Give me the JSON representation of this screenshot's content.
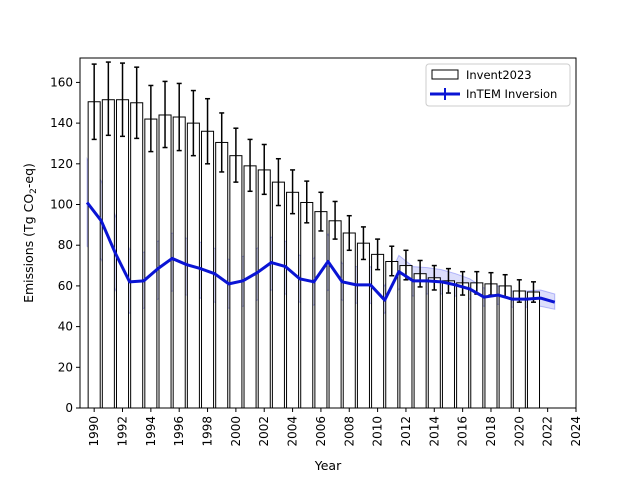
{
  "chart_data": {
    "type": "bar",
    "title": "",
    "xlabel": "Year",
    "ylabel_main": "Emissions (Tg CO",
    "ylabel_sub": "2",
    "ylabel_tail": "-eq)",
    "xlim": [
      1989,
      2024
    ],
    "ylim": [
      0,
      172
    ],
    "xticks": [
      1990,
      1992,
      1994,
      1996,
      1998,
      2000,
      2002,
      2004,
      2006,
      2008,
      2010,
      2012,
      2014,
      2016,
      2018,
      2020,
      2022,
      2024
    ],
    "yticks": [
      0,
      20,
      40,
      60,
      80,
      100,
      120,
      140,
      160
    ],
    "grid": false,
    "legend_position": "top-right",
    "series": [
      {
        "name": "Invent2023",
        "kind": "bar",
        "fill": "#ffffff",
        "edge": "#000000",
        "x": [
          1990,
          1991,
          1992,
          1993,
          1994,
          1995,
          1996,
          1997,
          1998,
          1999,
          2000,
          2001,
          2002,
          2003,
          2004,
          2005,
          2006,
          2007,
          2008,
          2009,
          2010,
          2011,
          2012,
          2013,
          2014,
          2015,
          2016,
          2017,
          2018,
          2019,
          2020,
          2021
        ],
        "values": [
          150.5,
          151.5,
          151.5,
          150.0,
          142.0,
          144.0,
          143.0,
          140.0,
          136.0,
          130.5,
          124.0,
          119.0,
          117.0,
          111.0,
          106.0,
          101.0,
          96.5,
          92.0,
          86.0,
          81.0,
          75.5,
          72.0,
          70.0,
          66.0,
          64.0,
          62.5,
          61.5,
          61.5,
          61.0,
          60.0,
          57.5,
          57.0
        ],
        "err_low": [
          132.0,
          134.0,
          133.5,
          132.5,
          126.0,
          128.0,
          126.5,
          124.0,
          120.0,
          116.0,
          111.0,
          106.5,
          105.0,
          99.5,
          95.5,
          91.0,
          87.0,
          83.0,
          77.5,
          73.0,
          68.0,
          65.0,
          63.0,
          59.5,
          58.0,
          56.5,
          55.5,
          56.0,
          55.5,
          54.5,
          52.0,
          52.0
        ],
        "err_high": [
          169.0,
          170.0,
          169.5,
          167.5,
          158.5,
          160.5,
          159.5,
          156.0,
          152.0,
          145.0,
          137.5,
          132.0,
          129.5,
          122.5,
          117.0,
          111.5,
          106.0,
          101.5,
          94.5,
          89.0,
          83.0,
          79.5,
          77.5,
          72.5,
          70.0,
          68.5,
          67.0,
          67.0,
          66.5,
          65.5,
          63.0,
          62.0
        ]
      },
      {
        "name": "InTEM Inversion",
        "kind": "line",
        "color": "#0a14d4",
        "band_color": "#3b46f0",
        "x": [
          1989.5,
          1990.5,
          1991.5,
          1992.5,
          1993.5,
          1994.5,
          1995.5,
          1996.5,
          1997.5,
          1998.5,
          1999.5,
          2000.5,
          2001.5,
          2002.5,
          2003.5,
          2004.5,
          2005.5,
          2006.5,
          2007.5,
          2008.5,
          2009.5,
          2010.5,
          2011.5,
          2012.5,
          2013.5,
          2014.5,
          2015.5,
          2016.5,
          2017.5,
          2018.5,
          2019.5,
          2020.5,
          2021.5,
          2022.5
        ],
        "values": [
          101.0,
          92.0,
          76.0,
          62.0,
          62.5,
          68.5,
          73.5,
          70.5,
          68.5,
          66.0,
          61.0,
          62.5,
          66.5,
          71.5,
          69.5,
          63.5,
          62.0,
          72.0,
          62.0,
          60.5,
          60.5,
          53.0,
          67.0,
          62.5,
          62.5,
          62.0,
          60.5,
          58.5,
          54.5,
          55.5,
          53.5,
          53.5,
          54.0,
          52.0
        ],
        "lower": [
          79.5,
          73.0,
          58.0,
          46.5,
          49.0,
          53.5,
          57.5,
          55.5,
          54.0,
          52.0,
          49.0,
          50.0,
          53.0,
          58.0,
          56.0,
          52.0,
          50.5,
          58.0,
          53.0,
          51.5,
          51.5,
          46.5,
          58.5,
          55.0,
          56.0,
          56.0,
          55.0,
          53.5,
          50.0,
          51.0,
          49.5,
          49.5,
          50.0,
          48.5
        ],
        "upper": [
          122.5,
          111.5,
          94.5,
          78.0,
          76.5,
          82.0,
          86.0,
          83.5,
          81.5,
          78.5,
          73.0,
          74.5,
          78.5,
          84.0,
          82.0,
          75.0,
          73.5,
          85.5,
          71.0,
          69.5,
          69.5,
          60.0,
          75.0,
          69.5,
          69.0,
          68.0,
          66.0,
          63.5,
          59.0,
          60.0,
          57.5,
          57.5,
          58.0,
          56.0
        ]
      }
    ]
  }
}
